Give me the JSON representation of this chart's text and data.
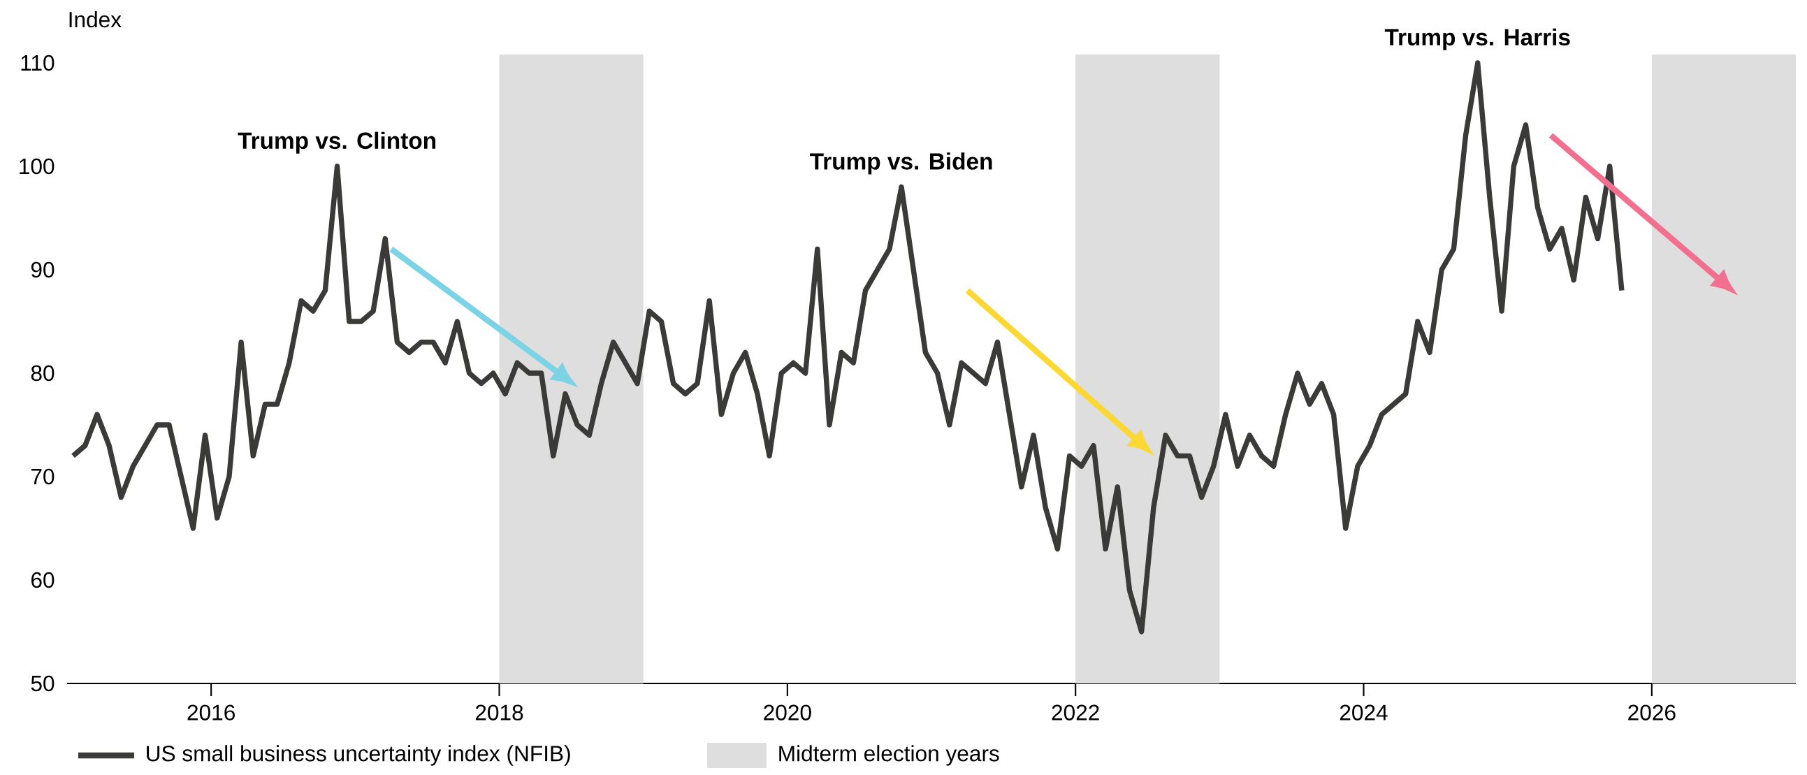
{
  "chart_data": {
    "type": "line",
    "ylabel": "Index",
    "x": [
      "2015-01",
      "2015-02",
      "2015-03",
      "2015-04",
      "2015-05",
      "2015-06",
      "2015-07",
      "2015-08",
      "2015-09",
      "2015-10",
      "2015-11",
      "2015-12",
      "2016-01",
      "2016-02",
      "2016-03",
      "2016-04",
      "2016-05",
      "2016-06",
      "2016-07",
      "2016-08",
      "2016-09",
      "2016-10",
      "2016-11",
      "2016-12",
      "2017-01",
      "2017-02",
      "2017-03",
      "2017-04",
      "2017-05",
      "2017-06",
      "2017-07",
      "2017-08",
      "2017-09",
      "2017-10",
      "2017-11",
      "2017-12",
      "2018-01",
      "2018-02",
      "2018-03",
      "2018-04",
      "2018-05",
      "2018-06",
      "2018-07",
      "2018-08",
      "2018-09",
      "2018-10",
      "2018-11",
      "2018-12",
      "2019-01",
      "2019-02",
      "2019-03",
      "2019-04",
      "2019-05",
      "2019-06",
      "2019-07",
      "2019-08",
      "2019-09",
      "2019-10",
      "2019-11",
      "2019-12",
      "2020-01",
      "2020-02",
      "2020-03",
      "2020-04",
      "2020-05",
      "2020-06",
      "2020-07",
      "2020-08",
      "2020-09",
      "2020-10",
      "2020-11",
      "2020-12",
      "2021-01",
      "2021-02",
      "2021-03",
      "2021-04",
      "2021-05",
      "2021-06",
      "2021-07",
      "2021-08",
      "2021-09",
      "2021-10",
      "2021-11",
      "2021-12",
      "2022-01",
      "2022-02",
      "2022-03",
      "2022-04",
      "2022-05",
      "2022-06",
      "2022-07",
      "2022-08",
      "2022-09",
      "2022-10",
      "2022-11",
      "2022-12",
      "2023-01",
      "2023-02",
      "2023-03",
      "2023-04",
      "2023-05",
      "2023-06",
      "2023-07",
      "2023-08",
      "2023-09",
      "2023-10",
      "2023-11",
      "2023-12",
      "2024-01",
      "2024-02",
      "2024-03",
      "2024-04",
      "2024-05",
      "2024-06",
      "2024-07",
      "2024-08",
      "2024-09",
      "2024-10",
      "2024-11",
      "2024-12",
      "2025-01",
      "2025-02",
      "2025-03",
      "2025-04",
      "2025-05",
      "2025-06",
      "2025-07",
      "2025-08",
      "2025-09",
      "2025-10"
    ],
    "series": [
      {
        "name": "US small business uncertainty index (NFIB)",
        "color": "#3a3a38",
        "values": [
          72,
          73,
          76,
          73,
          68,
          71,
          73,
          75,
          75,
          70,
          65,
          74,
          66,
          70,
          83,
          72,
          77,
          77,
          81,
          87,
          86,
          88,
          100,
          85,
          85,
          86,
          93,
          83,
          82,
          83,
          83,
          81,
          85,
          80,
          79,
          80,
          78,
          81,
          80,
          80,
          72,
          78,
          75,
          74,
          79,
          83,
          81,
          79,
          86,
          85,
          79,
          78,
          79,
          87,
          76,
          80,
          82,
          78,
          72,
          80,
          81,
          80,
          92,
          75,
          82,
          81,
          88,
          90,
          92,
          98,
          90,
          82,
          80,
          75,
          81,
          80,
          79,
          83,
          76,
          69,
          74,
          67,
          63,
          72,
          71,
          73,
          63,
          69,
          59,
          55,
          67,
          74,
          72,
          72,
          68,
          71,
          76,
          71,
          74,
          72,
          71,
          76,
          80,
          77,
          79,
          76,
          65,
          71,
          73,
          76,
          77,
          78,
          85,
          82,
          90,
          92,
          103,
          110,
          97,
          86,
          100,
          104,
          96,
          92,
          94,
          89,
          97,
          93,
          100,
          88
        ]
      }
    ],
    "xlim": [
      "2015",
      "2027"
    ],
    "xticks": [
      "2016",
      "2018",
      "2020",
      "2022",
      "2024",
      "2026"
    ],
    "ylim": [
      50,
      110
    ],
    "yticks": [
      50,
      60,
      70,
      80,
      90,
      100,
      110
    ],
    "bands": [
      {
        "axis": "x",
        "from": "2018",
        "to": "2019",
        "label": "Midterm election years",
        "color": "#dedede"
      },
      {
        "axis": "x",
        "from": "2022",
        "to": "2023",
        "color": "#dedede"
      },
      {
        "axis": "x",
        "from": "2026",
        "to": "2027",
        "color": "#dedede"
      }
    ],
    "annotations": [
      {
        "text": "Trump vs. Clinton",
        "x": "2016-11",
        "y": 100
      },
      {
        "text": "Trump vs. Biden",
        "x": "2020-10",
        "y": 98
      },
      {
        "text": "Trump vs. Harris",
        "x": "2024-10",
        "y": 110
      }
    ],
    "legend": "bottom"
  }
}
